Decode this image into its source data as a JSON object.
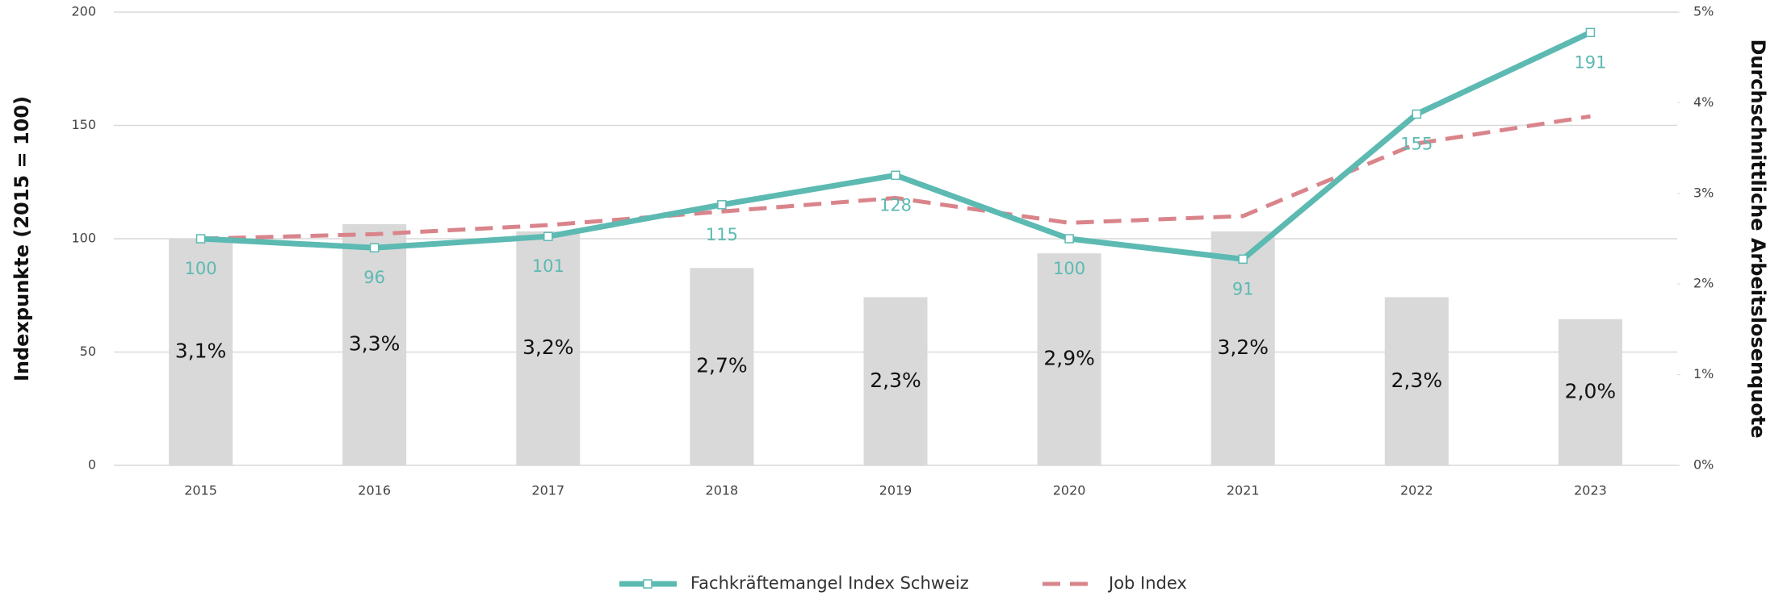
{
  "chart_data": {
    "type": "bar-line",
    "ylabel": "Indexpunkte (2015 = 100)",
    "y2label": "Durchschnittliche Arbeitslosenquote",
    "categories": [
      "2015",
      "2016",
      "2017",
      "2018",
      "2019",
      "2020",
      "2021",
      "2022",
      "2023"
    ],
    "ylim": [
      0,
      200
    ],
    "yticks": [
      0,
      50,
      100,
      150,
      200
    ],
    "y2lim": [
      0,
      5
    ],
    "y2ticks": [
      {
        "value": 0,
        "label": "0%"
      },
      {
        "value": 1,
        "label": "1%"
      },
      {
        "value": 2,
        "label": "2%"
      },
      {
        "value": 3,
        "label": "3%"
      },
      {
        "value": 4,
        "label": "4%"
      },
      {
        "value": 5,
        "label": "5%"
      }
    ],
    "y3lim": [
      0,
      6.2
    ],
    "grid": true,
    "legend": "bottom",
    "bars": {
      "axis": "y3",
      "color": "#d9d9d9",
      "values": [
        3.1,
        3.3,
        3.2,
        2.7,
        2.3,
        2.9,
        3.2,
        2.3,
        2.0
      ],
      "value_labels": [
        "3,1%",
        "3,3%",
        "3,2%",
        "2,7%",
        "2,3%",
        "2,9%",
        "3,2%",
        "2,3%",
        "2,0%"
      ]
    },
    "series": [
      {
        "name": "Fachkräftemangel Index Schweiz",
        "color": "#5cbab2",
        "style": "solid",
        "markers": true,
        "labels": true,
        "values": [
          100,
          96,
          101,
          115,
          128,
          100,
          91,
          155,
          191
        ]
      },
      {
        "name": "Job Index",
        "color": "#d9848b",
        "style": "dashed",
        "markers": false,
        "labels": false,
        "values": [
          100,
          102,
          106,
          112,
          118,
          107,
          110,
          142,
          154
        ]
      }
    ]
  }
}
